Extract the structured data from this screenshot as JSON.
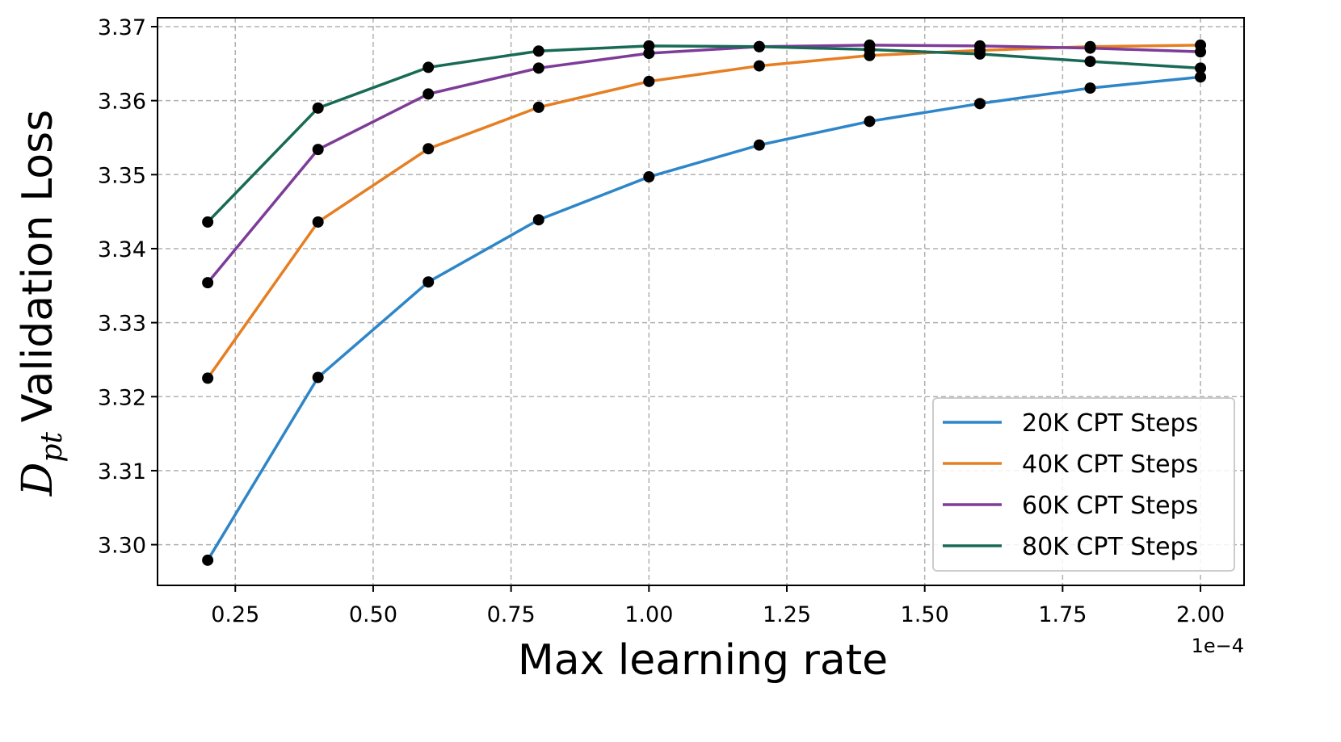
{
  "chart_data": {
    "type": "line",
    "title": "",
    "xlabel": "Max learning rate",
    "ylabel": {
      "symbol": "D",
      "subscript": "pt",
      "text": "Validation Loss"
    },
    "x_offset_text": "1e−4",
    "x": [
      0.2,
      0.4,
      0.6,
      0.8,
      1.0,
      1.2,
      1.4,
      1.6,
      1.8,
      2.0
    ],
    "xlim": [
      0.109,
      2.079
    ],
    "ylim": [
      3.2945,
      3.3712
    ],
    "xticks": [
      0.25,
      0.5,
      0.75,
      1.0,
      1.25,
      1.5,
      1.75,
      2.0
    ],
    "xtick_labels": [
      "0.25",
      "0.50",
      "0.75",
      "1.00",
      "1.25",
      "1.50",
      "1.75",
      "2.00"
    ],
    "yticks": [
      3.3,
      3.31,
      3.32,
      3.33,
      3.34,
      3.35,
      3.36,
      3.37
    ],
    "ytick_labels": [
      "3.30",
      "3.31",
      "3.32",
      "3.33",
      "3.34",
      "3.35",
      "3.36",
      "3.37"
    ],
    "grid": true,
    "legend_position": "lower-right",
    "marker_color": "#000000",
    "series": [
      {
        "name": "20K CPT Steps",
        "color": "#2e86c8",
        "values": [
          3.2979,
          3.3226,
          3.3355,
          3.3439,
          3.3497,
          3.354,
          3.3572,
          3.3596,
          3.3617,
          3.3632
        ]
      },
      {
        "name": "40K CPT Steps",
        "color": "#e67e22",
        "values": [
          3.3225,
          3.3436,
          3.3535,
          3.3591,
          3.3626,
          3.3647,
          3.3661,
          3.3668,
          3.3673,
          3.3675
        ]
      },
      {
        "name": "60K CPT Steps",
        "color": "#7d3c98",
        "values": [
          3.3354,
          3.3534,
          3.3609,
          3.3644,
          3.3664,
          3.3673,
          3.3675,
          3.3674,
          3.3671,
          3.3666
        ]
      },
      {
        "name": "80K CPT Steps",
        "color": "#186a55",
        "values": [
          3.3436,
          3.359,
          3.3645,
          3.3667,
          3.3674,
          3.3673,
          3.3669,
          3.3663,
          3.3653,
          3.3644
        ]
      }
    ]
  }
}
